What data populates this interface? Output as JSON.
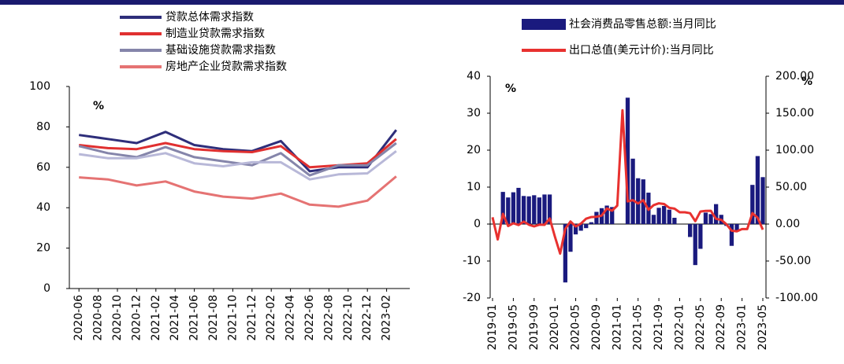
{
  "chart_data": [
    {
      "type": "line",
      "annotations": [
        "%"
      ],
      "x": [
        "2020-06",
        "2020-09",
        "2020-12",
        "2021-03",
        "2021-06",
        "2021-09",
        "2021-12",
        "2022-03",
        "2022-06",
        "2022-09",
        "2022-12",
        "2023-03"
      ],
      "xlim": [
        "2020-05",
        "2023-04"
      ],
      "xticks": [
        "2020-06",
        "2020-08",
        "2020-10",
        "2020-12",
        "2021-02",
        "2021-04",
        "2021-06",
        "2021-08",
        "2021-10",
        "2021-12",
        "2022-02",
        "2022-04",
        "2022-06",
        "2022-08",
        "2022-10",
        "2022-12",
        "2023-02"
      ],
      "ylim": [
        0,
        100
      ],
      "yticks": [
        0,
        20,
        40,
        60,
        80,
        100
      ],
      "series": [
        {
          "name": "贷款总体需求指数",
          "color": "#2e2e7a",
          "values": [
            76,
            74,
            72,
            77.5,
            71,
            69,
            68,
            73,
            58,
            60,
            60,
            78.5
          ]
        },
        {
          "name": "制造业贷款需求指数",
          "color": "#e03030",
          "values": [
            71,
            69.5,
            69,
            72,
            69,
            68,
            67.5,
            70.5,
            60,
            61,
            62,
            74
          ]
        },
        {
          "name": "基础设施贷款需求指数",
          "color": "#8585aa",
          "values": [
            70.5,
            67,
            65,
            70,
            65,
            63,
            61,
            67,
            56,
            61,
            61,
            72
          ]
        },
        {
          "name": "房地产企业贷款需求指数",
          "color": "#e57373",
          "values": [
            55,
            54,
            51,
            53,
            48,
            45.5,
            44.5,
            47,
            41.5,
            40.5,
            43.5,
            55.5
          ]
        },
        {
          "color": "#b8b8d8",
          "values": [
            66.5,
            64.5,
            64.5,
            67,
            62,
            60.5,
            62.5,
            62.5,
            54,
            56.5,
            57,
            68
          ]
        }
      ]
    },
    {
      "type": "bar",
      "annotations": [
        "%",
        "%"
      ],
      "x": [
        "2019-01",
        "2019-02",
        "2019-03",
        "2019-04",
        "2019-05",
        "2019-06",
        "2019-07",
        "2019-08",
        "2019-09",
        "2019-10",
        "2019-11",
        "2019-12",
        "2020-01",
        "2020-02",
        "2020-03",
        "2020-04",
        "2020-05",
        "2020-06",
        "2020-07",
        "2020-08",
        "2020-09",
        "2020-10",
        "2020-11",
        "2020-12",
        "2021-01",
        "2021-02",
        "2021-03",
        "2021-04",
        "2021-05",
        "2021-06",
        "2021-07",
        "2021-08",
        "2021-09",
        "2021-10",
        "2021-11",
        "2021-12",
        "2022-01",
        "2022-02",
        "2022-03",
        "2022-04",
        "2022-05",
        "2022-06",
        "2022-07",
        "2022-08",
        "2022-09",
        "2022-10",
        "2022-11",
        "2022-12",
        "2023-01",
        "2023-02",
        "2023-03",
        "2023-04",
        "2023-05"
      ],
      "xlim": [
        "2019-01",
        "2023-05"
      ],
      "xticks": [
        "2019-01",
        "2019-05",
        "2019-09",
        "2020-01",
        "2020-05",
        "2020-09",
        "2021-01",
        "2021-05",
        "2021-09",
        "2022-01",
        "2022-05",
        "2022-09",
        "2023-01",
        "2023-05"
      ],
      "ylim": [
        -20,
        40
      ],
      "yticks": [
        -20,
        -10,
        0,
        10,
        20,
        30,
        40
      ],
      "y2lim": [
        -100,
        200
      ],
      "y2ticks": [
        {
          "value": -100,
          "label": "-100.00"
        },
        {
          "value": -50,
          "label": "-50.00"
        },
        {
          "value": 0,
          "label": "0.00"
        },
        {
          "value": 50,
          "label": "50.00"
        },
        {
          "value": 100,
          "label": "100.00"
        },
        {
          "value": 150,
          "label": "150.00"
        },
        {
          "value": 200,
          "label": "200.00"
        }
      ],
      "series": [
        {
          "name": "社会消费品零售总额:当月同比",
          "type": "bar",
          "color": "#1a1a7e",
          "values": [
            null,
            null,
            8.7,
            7.2,
            8.6,
            9.8,
            7.6,
            7.5,
            7.8,
            7.2,
            8.0,
            8.0,
            null,
            null,
            -15.8,
            -7.5,
            -2.8,
            -1.8,
            -1.1,
            0.5,
            3.3,
            4.3,
            5.0,
            4.6,
            null,
            null,
            34.2,
            17.7,
            12.4,
            12.1,
            8.5,
            2.5,
            4.4,
            4.9,
            3.9,
            1.7,
            null,
            null,
            -3.5,
            -11.1,
            -6.7,
            3.1,
            2.7,
            5.4,
            2.5,
            -0.5,
            -5.9,
            -1.8,
            null,
            null,
            10.6,
            18.4,
            12.7
          ]
        },
        {
          "name": "出口总值(美元计价):当月同比",
          "type": "line",
          "axis": "y2",
          "color": "#e8312f",
          "values": [
            9.1,
            -20.8,
            13.8,
            -2.7,
            1.1,
            -1.3,
            3.3,
            -1.0,
            -3.2,
            -0.9,
            -1.1,
            7.6,
            -17.2,
            -40,
            -6.6,
            3.5,
            -3.3,
            0.5,
            7.2,
            9.5,
            9.9,
            11.4,
            21.1,
            18.1,
            25,
            154,
            30.6,
            32.3,
            27.9,
            32.2,
            19.3,
            25.6,
            28.1,
            27.1,
            22,
            20.9,
            16,
            16,
            14.7,
            3.9,
            16.9,
            17.9,
            18,
            7.1,
            5.7,
            -0.3,
            -8.9,
            -9.9,
            -6.8,
            -6.8,
            14.8,
            8.5,
            -7.5
          ]
        }
      ]
    }
  ]
}
